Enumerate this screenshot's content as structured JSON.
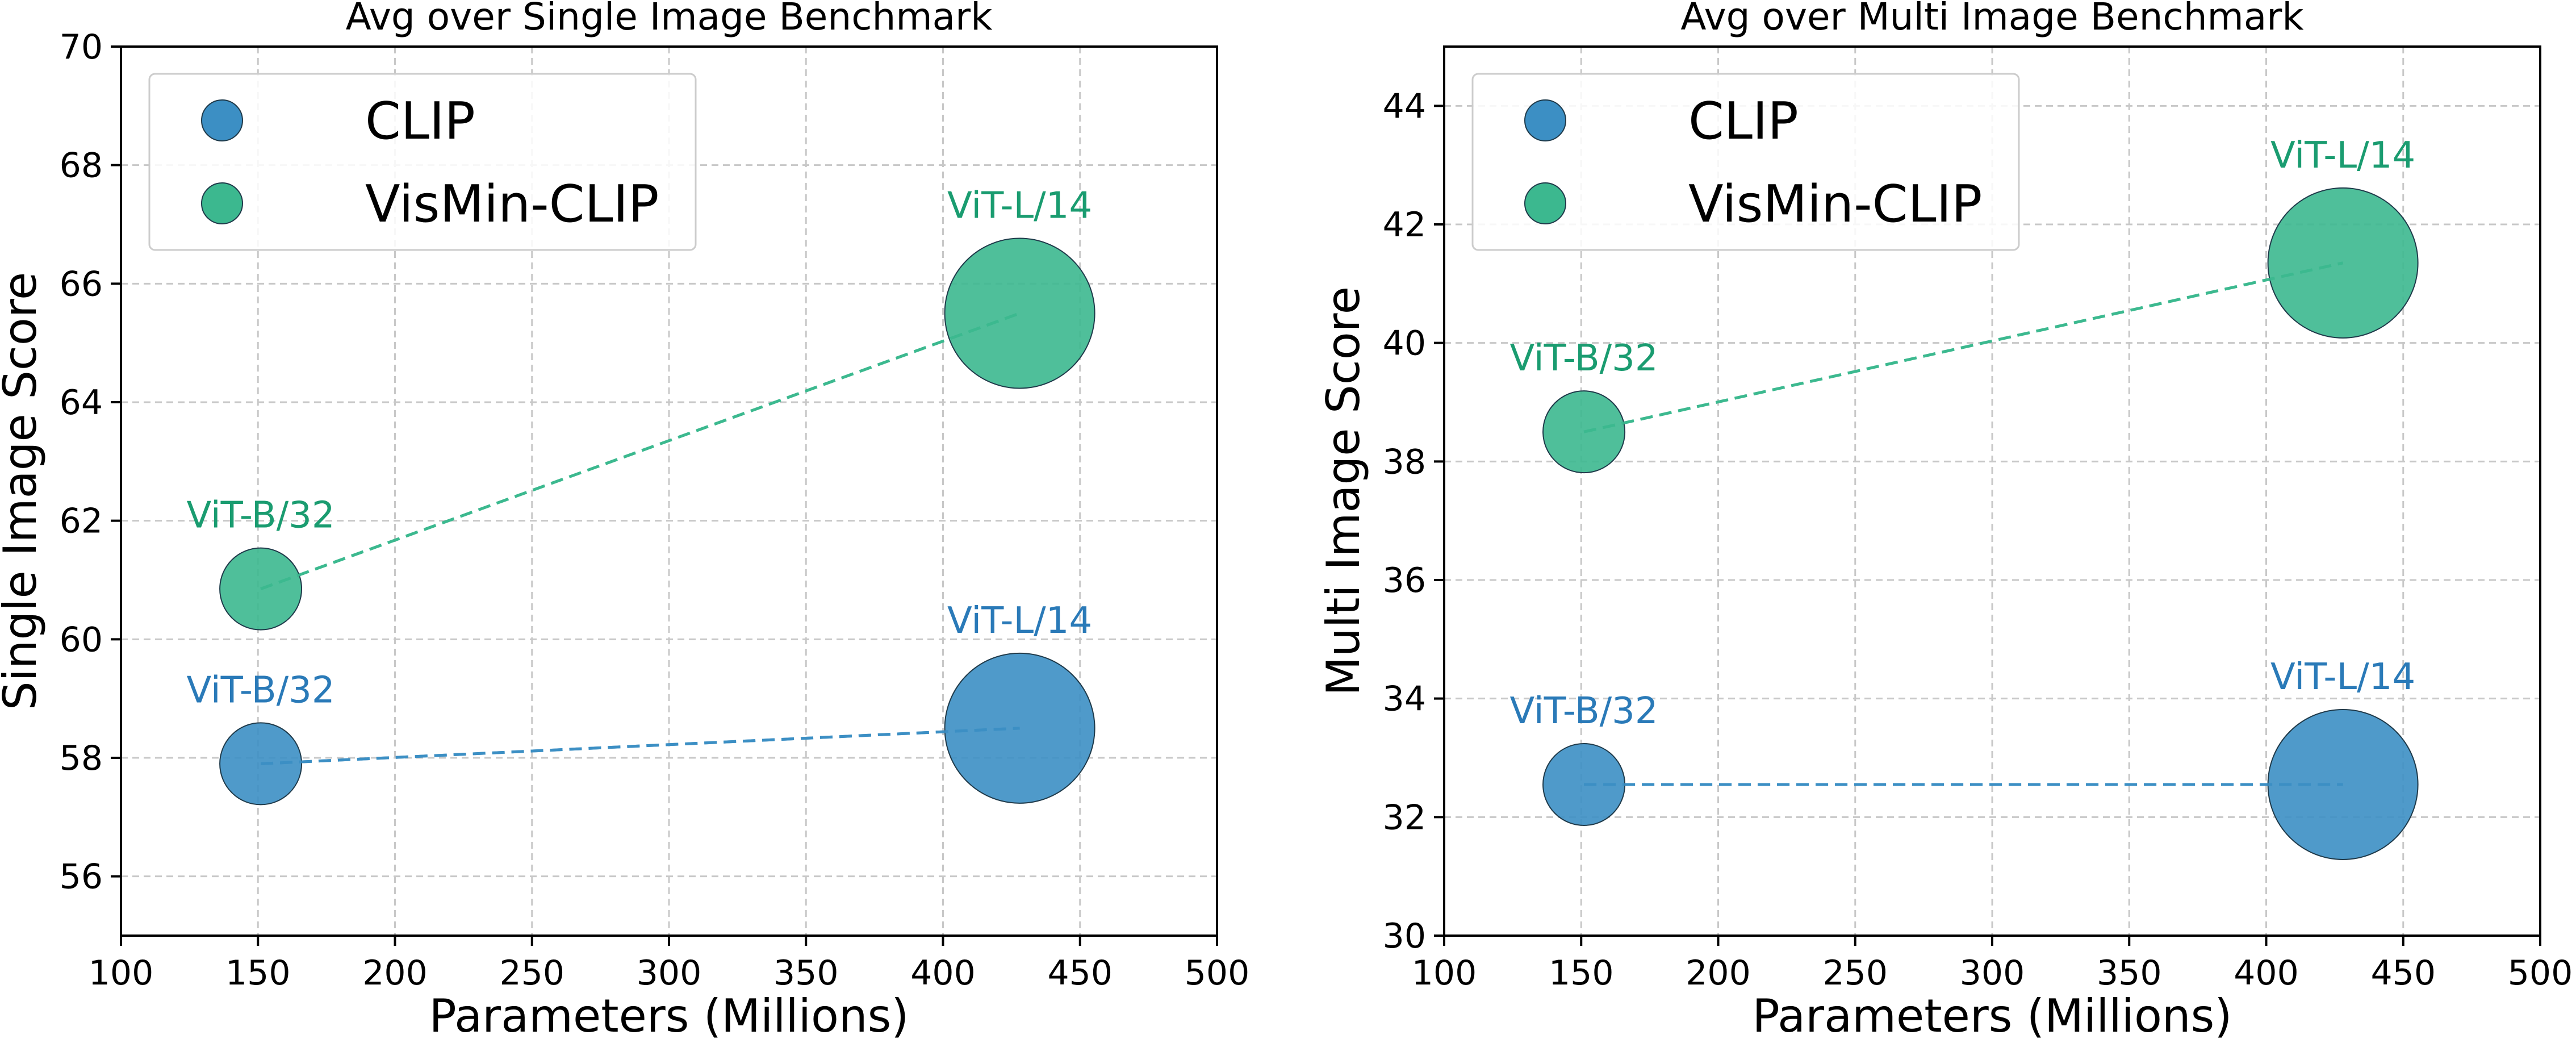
{
  "chart_data": [
    {
      "type": "scatter",
      "title": "Avg over Single Image Benchmark",
      "xlabel": "Parameters (Millions)",
      "ylabel": "Single Image Score",
      "xlim": [
        100,
        500
      ],
      "ylim": [
        55,
        70
      ],
      "xticks": [
        100,
        150,
        200,
        250,
        300,
        350,
        400,
        450,
        500
      ],
      "yticks": [
        56,
        58,
        60,
        62,
        64,
        66,
        68,
        70
      ],
      "grid": true,
      "legend_position": "upper-left",
      "series": [
        {
          "name": "CLIP",
          "color": "#3c8fc4",
          "label_color": "#2a7ab8",
          "points": [
            {
              "x": 151,
              "y": 57.9,
              "label": "ViT-B/32"
            },
            {
              "x": 428,
              "y": 58.5,
              "label": "ViT-L/14"
            }
          ]
        },
        {
          "name": "VisMin-CLIP",
          "color": "#3cb88f",
          "label_color": "#1a9c70",
          "points": [
            {
              "x": 151,
              "y": 60.85,
              "label": "ViT-B/32"
            },
            {
              "x": 428,
              "y": 65.5,
              "label": "ViT-L/14"
            }
          ]
        }
      ]
    },
    {
      "type": "scatter",
      "title": "Avg over Multi Image Benchmark",
      "xlabel": "Parameters (Millions)",
      "ylabel": "Multi Image Score",
      "xlim": [
        100,
        500
      ],
      "ylim": [
        30,
        45
      ],
      "xticks": [
        100,
        150,
        200,
        250,
        300,
        350,
        400,
        450,
        500
      ],
      "yticks": [
        30,
        32,
        34,
        36,
        38,
        40,
        42,
        44
      ],
      "grid": true,
      "legend_position": "upper-left",
      "series": [
        {
          "name": "CLIP",
          "color": "#3c8fc4",
          "label_color": "#2a7ab8",
          "points": [
            {
              "x": 151,
              "y": 32.55,
              "label": "ViT-B/32"
            },
            {
              "x": 428,
              "y": 32.55,
              "label": "ViT-L/14"
            }
          ]
        },
        {
          "name": "VisMin-CLIP",
          "color": "#3cb88f",
          "label_color": "#1a9c70",
          "points": [
            {
              "x": 151,
              "y": 38.5,
              "label": "ViT-B/32"
            },
            {
              "x": 428,
              "y": 41.35,
              "label": "ViT-L/14"
            }
          ]
        }
      ]
    }
  ]
}
